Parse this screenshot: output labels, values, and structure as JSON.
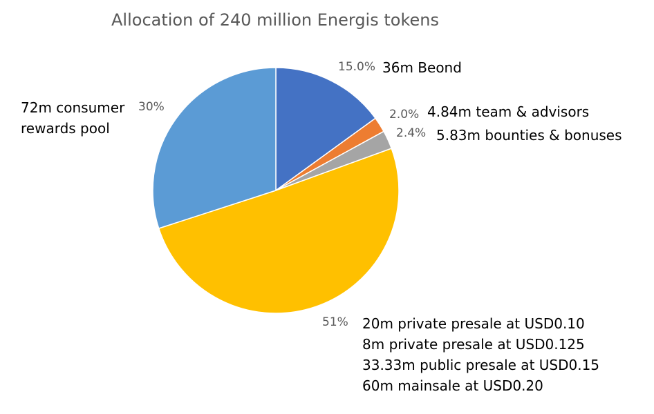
{
  "colors": {
    "beond": "#4472C4",
    "team": "#ED7D31",
    "bounties": "#A5A5A5",
    "sales": "#FFC000",
    "consumer": "#5B9BD5"
  },
  "chart_data": {
    "type": "pie",
    "title": "Allocation of 240 million Energis tokens",
    "slices": [
      {
        "key": "beond",
        "value": 36,
        "percent_label": "15.0%",
        "label_lines": [
          "36m Beond"
        ]
      },
      {
        "key": "team",
        "value": 4.84,
        "percent_label": "2.0%",
        "label_lines": [
          "4.84m team & advisors"
        ]
      },
      {
        "key": "bounties",
        "value": 5.83,
        "percent_label": "2.4%",
        "label_lines": [
          "5.83m bounties & bonuses"
        ]
      },
      {
        "key": "sales",
        "value": 121.33,
        "percent_label": "51%",
        "label_lines": [
          "20m private presale at USD0.10",
          "8m private presale at USD0.125",
          "33.33m public presale at USD0.15",
          "60m mainsale at USD0.20"
        ]
      },
      {
        "key": "consumer",
        "value": 72,
        "percent_label": "30%",
        "label_lines": [
          "72m consumer",
          "rewards pool"
        ]
      }
    ]
  }
}
